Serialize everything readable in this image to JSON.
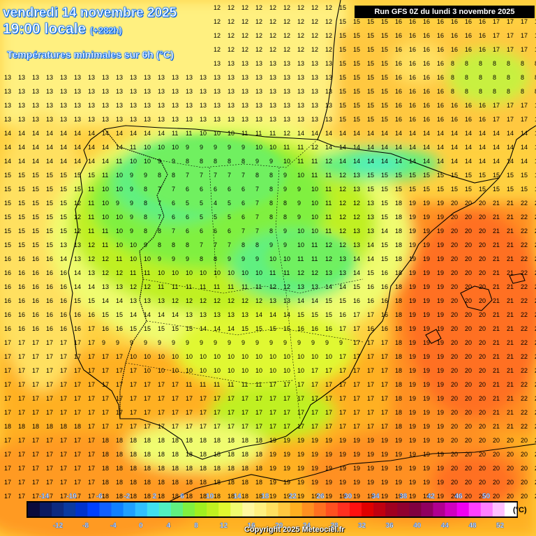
{
  "header": {
    "date_line": "vendredi 14 novembre 2025",
    "time_line": "19:00 locale",
    "offset": "(+282h)",
    "parameter": "Températures minimales sur 6h (°C)",
    "run_info": "Run GFS 0Z du lundi 3 novembre 2025"
  },
  "footer": {
    "copyright": "Copyright 2025 Meteociel.fr"
  },
  "legend": {
    "unit": "(°C)",
    "top_labels": [
      "-14",
      "-10",
      "-6",
      "-2",
      "2",
      "6",
      "10",
      "14",
      "18",
      "22",
      "26",
      "30",
      "34",
      "38",
      "42",
      "46",
      "50"
    ],
    "bottom_labels": [
      "-12",
      "-8",
      "-4",
      "0",
      "4",
      "8",
      "12",
      "16",
      "20",
      "24",
      "28",
      "32",
      "36",
      "40",
      "44",
      "48",
      "52"
    ],
    "colors": [
      "#0a0a3c",
      "#0b1a60",
      "#0d2a80",
      "#0a3aa0",
      "#0033cc",
      "#0040ff",
      "#1060ff",
      "#1080ff",
      "#20a0ff",
      "#30c0ff",
      "#40e0f0",
      "#50f0c0",
      "#60f080",
      "#80f040",
      "#a0f020",
      "#c0f020",
      "#e0f830",
      "#f0fc70",
      "#fff8a0",
      "#fff080",
      "#ffe060",
      "#ffc840",
      "#ffb020",
      "#ff9020",
      "#ff7020",
      "#ff5020",
      "#ff3020",
      "#ff1010",
      "#e00000",
      "#c00010",
      "#a00020",
      "#900030",
      "#800040",
      "#900060",
      "#b00090",
      "#d000c0",
      "#f000f0",
      "#ff40ff",
      "#ff80ff",
      "#ffc0ff",
      "#ffffff"
    ]
  },
  "map": {
    "region": "Péninsule ibérique",
    "min_value": 3,
    "max_value": 22
  }
}
